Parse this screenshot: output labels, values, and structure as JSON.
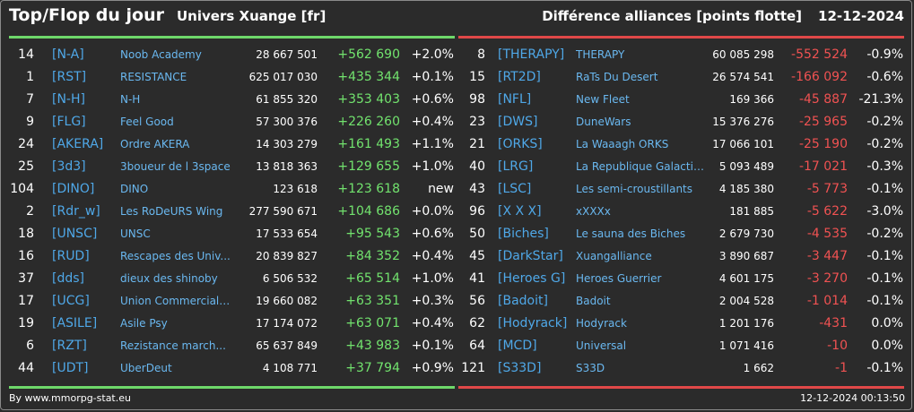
{
  "header": {
    "title": "Top/Flop du jour",
    "subtitle": "Univers Xuange [fr]",
    "right_title": "Différence alliances [points flotte]",
    "date": "12-12-2024"
  },
  "colors": {
    "top_accent": "#6ed86a",
    "flop_accent": "#e04848",
    "tag_blue": "#4fa8e8",
    "positive": "#72e36e",
    "negative": "#f05252",
    "background": "#2b2b2b"
  },
  "top": [
    {
      "rank": "14",
      "tag": "[N-A]",
      "name": "Noob Academy",
      "points": "28 667 501",
      "diff": "+562 690",
      "pct": "+2.0%"
    },
    {
      "rank": "1",
      "tag": "[RST]",
      "name": "RESISTANCE",
      "points": "625 017 030",
      "diff": "+435 344",
      "pct": "+0.1%"
    },
    {
      "rank": "7",
      "tag": "[N-H]",
      "name": "N-H",
      "points": "61 855 320",
      "diff": "+353 403",
      "pct": "+0.6%"
    },
    {
      "rank": "9",
      "tag": "[FLG]",
      "name": "Feel Good",
      "points": "57 300 376",
      "diff": "+226 260",
      "pct": "+0.4%"
    },
    {
      "rank": "24",
      "tag": "[AKERA]",
      "name": "Ordre AKERA",
      "points": "14 303 279",
      "diff": "+161 493",
      "pct": "+1.1%"
    },
    {
      "rank": "25",
      "tag": "[3d3]",
      "name": "3boueur de l 3space",
      "points": "13 818 363",
      "diff": "+129 655",
      "pct": "+1.0%"
    },
    {
      "rank": "104",
      "tag": "[DINO]",
      "name": "DINO",
      "points": "123 618",
      "diff": "+123 618",
      "pct": "new"
    },
    {
      "rank": "2",
      "tag": "[Rdr_w]",
      "name": "Les RoDeURS Wing",
      "points": "277 590 671",
      "diff": "+104 686",
      "pct": "+0.0%"
    },
    {
      "rank": "18",
      "tag": "[UNSC]",
      "name": "UNSC",
      "points": "17 533 654",
      "diff": "+95 543",
      "pct": "+0.6%"
    },
    {
      "rank": "16",
      "tag": "[RUD]",
      "name": "Rescapes des Univ...",
      "points": "20 839 827",
      "diff": "+84 352",
      "pct": "+0.4%"
    },
    {
      "rank": "37",
      "tag": "[dds]",
      "name": "dieux des shinoby",
      "points": "6 506 532",
      "diff": "+65 514",
      "pct": "+1.0%"
    },
    {
      "rank": "17",
      "tag": "[UCG]",
      "name": "Union Commerciale...",
      "points": "19 660 082",
      "diff": "+63 351",
      "pct": "+0.3%"
    },
    {
      "rank": "19",
      "tag": "[ASILE]",
      "name": "Asile Psy",
      "points": "17 174 072",
      "diff": "+63 071",
      "pct": "+0.4%"
    },
    {
      "rank": "6",
      "tag": "[RZT]",
      "name": "Rezistance march...",
      "points": "65 637 849",
      "diff": "+43 983",
      "pct": "+0.1%"
    },
    {
      "rank": "44",
      "tag": "[UDT]",
      "name": "UberDeut",
      "points": "4 108 771",
      "diff": "+37 794",
      "pct": "+0.9%"
    }
  ],
  "flop": [
    {
      "rank": "8",
      "tag": "[THERAPY]",
      "name": "THERAPY",
      "points": "60 085 298",
      "diff": "-552 524",
      "pct": "-0.9%"
    },
    {
      "rank": "15",
      "tag": "[RT2D]",
      "name": "RaTs Du Desert",
      "points": "26 574 541",
      "diff": "-166 092",
      "pct": "-0.6%"
    },
    {
      "rank": "98",
      "tag": "[NFL]",
      "name": "New Fleet",
      "points": "169 366",
      "diff": "-45 887",
      "pct": "-21.3%"
    },
    {
      "rank": "23",
      "tag": "[DWS]",
      "name": "DuneWars",
      "points": "15 376 276",
      "diff": "-25 965",
      "pct": "-0.2%"
    },
    {
      "rank": "21",
      "tag": "[ORKS]",
      "name": "La Waaagh ORKS",
      "points": "17 066 101",
      "diff": "-25 190",
      "pct": "-0.2%"
    },
    {
      "rank": "40",
      "tag": "[LRG]",
      "name": "La Republique Galactique",
      "points": "5 093 489",
      "diff": "-17 021",
      "pct": "-0.3%"
    },
    {
      "rank": "43",
      "tag": "[LSC]",
      "name": "Les semi-croustillants",
      "points": "4 185 380",
      "diff": "-5 773",
      "pct": "-0.1%"
    },
    {
      "rank": "96",
      "tag": "[X X X]",
      "name": "xXXXx",
      "points": "181 885",
      "diff": "-5 622",
      "pct": "-3.0%"
    },
    {
      "rank": "50",
      "tag": "[Biches]",
      "name": "Le sauna des Biches",
      "points": "2 679 730",
      "diff": "-4 535",
      "pct": "-0.2%"
    },
    {
      "rank": "45",
      "tag": "[DarkStar]",
      "name": "Xuangalliance",
      "points": "3 890 687",
      "diff": "-3 447",
      "pct": "-0.1%"
    },
    {
      "rank": "41",
      "tag": "[Heroes G]",
      "name": "Heroes Guerrier",
      "points": "4 601 175",
      "diff": "-3 270",
      "pct": "-0.1%"
    },
    {
      "rank": "56",
      "tag": "[Badoit]",
      "name": "Badoit",
      "points": "2 004 528",
      "diff": "-1 014",
      "pct": "-0.1%"
    },
    {
      "rank": "62",
      "tag": "[Hodyrack]",
      "name": "Hodyrack",
      "points": "1 201 176",
      "diff": "-431",
      "pct": "0.0%"
    },
    {
      "rank": "64",
      "tag": "[MCD]",
      "name": "Universal",
      "points": "1 071 416",
      "diff": "-10",
      "pct": "0.0%"
    },
    {
      "rank": "121",
      "tag": "[S33D]",
      "name": "S33D",
      "points": "1 662",
      "diff": "-1",
      "pct": "-0.1%"
    }
  ],
  "footer": {
    "credit": "By www.mmorpg-stat.eu",
    "timestamp": "12-12-2024 00:13:50"
  }
}
